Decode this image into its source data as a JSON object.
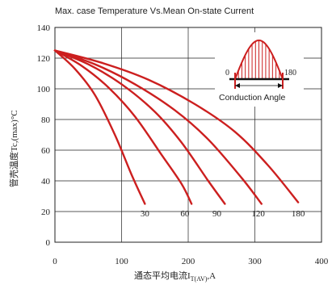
{
  "chart_data": {
    "type": "line",
    "title": "Max. case Temperature Vs.Mean On-state Current",
    "xlabel": "通态平均电流I",
    "xlabel_sub": "T(AV)",
    "xlabel_unit": ",A",
    "ylabel": "管壳温度Tc,(max)°C",
    "xlim": [
      0,
      400
    ],
    "ylim": [
      0,
      140
    ],
    "xticks": [
      0,
      100,
      200,
      300,
      400
    ],
    "yticks": [
      0,
      20,
      40,
      60,
      80,
      100,
      120,
      140
    ],
    "grid": true,
    "curve_color": "#cc1f1f",
    "series": [
      {
        "name": "30",
        "label_pos": [
          135,
          19
        ],
        "points": [
          [
            0,
            125
          ],
          [
            30,
            113
          ],
          [
            60,
            96
          ],
          [
            90,
            70
          ],
          [
            115,
            44
          ],
          [
            135,
            25
          ]
        ]
      },
      {
        "name": "60",
        "label_pos": [
          195,
          19
        ],
        "points": [
          [
            0,
            125
          ],
          [
            40,
            115
          ],
          [
            80,
            101
          ],
          [
            120,
            82
          ],
          [
            160,
            57
          ],
          [
            190,
            38
          ],
          [
            205,
            25
          ]
        ]
      },
      {
        "name": "90",
        "label_pos": [
          243,
          19
        ],
        "points": [
          [
            0,
            125
          ],
          [
            50,
            116
          ],
          [
            100,
            103
          ],
          [
            150,
            85
          ],
          [
            190,
            65
          ],
          [
            230,
            40
          ],
          [
            255,
            25
          ]
        ]
      },
      {
        "name": "120",
        "label_pos": [
          305,
          19
        ],
        "points": [
          [
            0,
            125
          ],
          [
            60,
            116
          ],
          [
            120,
            103
          ],
          [
            180,
            86
          ],
          [
            230,
            67
          ],
          [
            280,
            42
          ],
          [
            310,
            25
          ]
        ]
      },
      {
        "name": "180",
        "label_pos": [
          365,
          19
        ],
        "points": [
          [
            0,
            125
          ],
          [
            70,
            117
          ],
          [
            140,
            106
          ],
          [
            210,
            90
          ],
          [
            270,
            72
          ],
          [
            320,
            50
          ],
          [
            365,
            26
          ]
        ]
      }
    ],
    "inset": {
      "left_label": "0",
      "right_label": "180",
      "caption": "Conduction Angle"
    }
  }
}
